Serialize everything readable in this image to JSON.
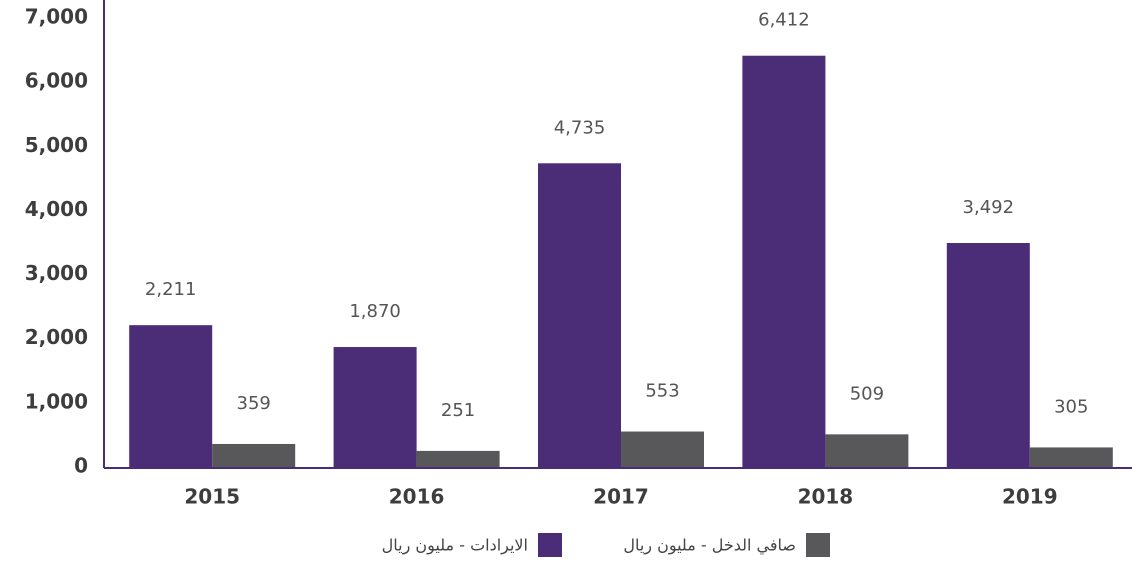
{
  "chart_data": {
    "type": "bar",
    "categories": [
      "2015",
      "2016",
      "2017",
      "2018",
      "2019"
    ],
    "series": [
      {
        "name": "الايرادات - مليون ريال",
        "color": "#4b2c77",
        "values": [
          2211,
          1870,
          4735,
          6412,
          3492
        ],
        "value_labels": [
          "2,211",
          "1,870",
          "4,735",
          "6,412",
          "3,492"
        ]
      },
      {
        "name": "صافي الدخل - مليون ريال",
        "color": "#58585a",
        "values": [
          359,
          251,
          553,
          509,
          305
        ]
      }
    ],
    "ylim": [
      0,
      7000
    ],
    "yticks": [
      0,
      {
        "value": 1000,
        "label": "1,000"
      },
      {
        "value": 2000,
        "label": "2,000"
      },
      {
        "value": 3000,
        "label": "3,000"
      },
      {
        "value": 4000,
        "label": "4,000"
      },
      {
        "value": 5000,
        "label": "5,000"
      },
      {
        "value": 6000,
        "label": "6,000"
      },
      {
        "value": 7000,
        "label": "7,000"
      }
    ],
    "grid": false
  }
}
